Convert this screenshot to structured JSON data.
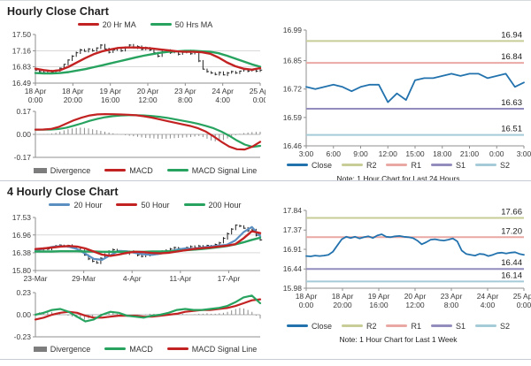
{
  "colors": {
    "grid": "#d9d9d9",
    "axis": "#8f8f8f",
    "candle": "#222222",
    "bar": "#8c8c8c",
    "red": "#c32222",
    "green": "#27a35f",
    "steel": "#5b8fc2",
    "close": "#2272ae",
    "r2": "#c8cd97",
    "r1": "#e9a8a4",
    "s1": "#938dbd",
    "s2": "#a5cbd9"
  },
  "chart_data": [
    {
      "title": "Hourly Close Chart",
      "type": "candlestick",
      "ylim": [
        16.49,
        17.5
      ],
      "yticks": [
        "17.50",
        "17.16",
        "16.83",
        "16.49"
      ],
      "grid": true,
      "xticks": [
        [
          "18 Apr",
          "0:00"
        ],
        [
          "18 Apr",
          "20:00"
        ],
        [
          "19 Apr",
          "16:00"
        ],
        [
          "20 Apr",
          "12:00"
        ],
        [
          "23 Apr",
          "8:00"
        ],
        [
          "24 Apr",
          "4:00"
        ],
        [
          "25 Apr",
          "0:00"
        ]
      ],
      "legend": [
        {
          "label": "20 Hr MA",
          "color": "#c32222",
          "type": "line"
        },
        {
          "label": "50 Hrs MA",
          "color": "#27a35f",
          "type": "line"
        }
      ],
      "candles": [
        16.76,
        16.73,
        16.71,
        16.74,
        16.72,
        16.75,
        16.8,
        16.88,
        16.97,
        17.05,
        17.12,
        17.18,
        17.15,
        17.2,
        17.16,
        17.22,
        17.28,
        17.2,
        17.13,
        17.18,
        17.22,
        17.16,
        17.24,
        17.28,
        17.22,
        17.25,
        17.19,
        17.23,
        17.18,
        17.12,
        17.05,
        17.14,
        17.17,
        17.12,
        17.15,
        17.09,
        17.13,
        17.16,
        17.1,
        17.14,
        16.95,
        16.78,
        16.73,
        16.7,
        16.67,
        16.71,
        16.66,
        16.7,
        16.73,
        16.7,
        16.74,
        16.77,
        16.74,
        16.76,
        16.74,
        16.76
      ],
      "series": [
        {
          "name": "50 Hrs MA",
          "color": "#27a35f",
          "width": 2.4,
          "values": [
            16.7,
            16.69,
            16.69,
            16.7,
            16.72,
            16.75,
            16.78,
            16.82,
            16.86,
            16.9,
            16.94,
            16.98,
            17.02,
            17.06,
            17.09,
            17.12,
            17.14,
            17.15,
            17.16,
            17.16,
            17.15,
            17.14,
            17.11,
            17.06,
            17.0,
            16.94,
            16.88,
            16.83
          ]
        },
        {
          "name": "20 Hr MA",
          "color": "#c32222",
          "width": 2.4,
          "values": [
            16.79,
            16.76,
            16.74,
            16.76,
            16.83,
            16.92,
            17.01,
            17.09,
            17.15,
            17.19,
            17.22,
            17.23,
            17.23,
            17.22,
            17.21,
            17.19,
            17.17,
            17.15,
            17.14,
            17.14,
            17.13,
            17.1,
            17.02,
            16.92,
            16.84,
            16.79,
            16.77,
            16.8
          ]
        }
      ]
    },
    {
      "type": "macd",
      "ylim": [
        -0.17,
        0.17
      ],
      "yticks": [
        "0.17",
        "0.00",
        "-0.17"
      ],
      "zeroline": true,
      "legend": [
        {
          "label": "Divergence",
          "color": "#7d7d7d",
          "type": "bar"
        },
        {
          "label": "MACD",
          "color": "#c32222",
          "type": "line"
        },
        {
          "label": "MACD Signal Line",
          "color": "#27a35f",
          "type": "line"
        }
      ],
      "bars": [
        0.001,
        0.001,
        0.002,
        0.003,
        0.006,
        0.012,
        0.02,
        0.03,
        0.038,
        0.044,
        0.048,
        0.05,
        0.048,
        0.044,
        0.038,
        0.032,
        0.026,
        0.02,
        0.014,
        0.008,
        0.003,
        -0.002,
        -0.006,
        -0.01,
        -0.014,
        -0.018,
        -0.022,
        -0.026,
        -0.028,
        -0.03,
        -0.032,
        -0.033,
        -0.032,
        -0.03,
        -0.028,
        -0.026,
        -0.024,
        -0.022,
        -0.02,
        -0.016,
        -0.012,
        -0.02,
        -0.032,
        -0.045,
        -0.052,
        -0.05,
        -0.042,
        -0.03,
        -0.018,
        -0.006,
        0.004,
        0.01,
        0.014,
        0.017,
        0.019,
        0.02
      ],
      "series": [
        {
          "name": "MACD Signal Line",
          "color": "#27a35f",
          "width": 2.2,
          "values": [
            0.035,
            0.035,
            0.036,
            0.04,
            0.05,
            0.065,
            0.082,
            0.1,
            0.115,
            0.127,
            0.135,
            0.14,
            0.142,
            0.142,
            0.14,
            0.136,
            0.13,
            0.122,
            0.112,
            0.101,
            0.09,
            0.078,
            0.063,
            0.045,
            0.02,
            -0.01,
            -0.045,
            -0.075,
            -0.092,
            -0.085
          ]
        },
        {
          "name": "MACD",
          "color": "#c32222",
          "width": 2.2,
          "values": [
            0.035,
            0.036,
            0.04,
            0.055,
            0.08,
            0.105,
            0.125,
            0.14,
            0.148,
            0.15,
            0.149,
            0.147,
            0.145,
            0.141,
            0.134,
            0.124,
            0.112,
            0.099,
            0.086,
            0.074,
            0.062,
            0.045,
            0.02,
            -0.015,
            -0.055,
            -0.09,
            -0.11,
            -0.112,
            -0.09,
            -0.055
          ]
        }
      ]
    },
    {
      "type": "line",
      "ylim": [
        16.46,
        16.99
      ],
      "yticks": [
        "16.99",
        "16.85",
        "16.72",
        "16.59",
        "16.46"
      ],
      "xticks": [
        "3:00",
        "6:00",
        "9:00",
        "12:00",
        "15:00",
        "18:00",
        "21:00",
        "0:00",
        "3:00"
      ],
      "note": "Note: 1 Hour Chart for Last 24 Hours",
      "legend": [
        {
          "label": "Close",
          "color": "#2272ae",
          "type": "line"
        },
        {
          "label": "R2",
          "color": "#c8cd97",
          "type": "line"
        },
        {
          "label": "R1",
          "color": "#e9a8a4",
          "type": "line"
        },
        {
          "label": "S1",
          "color": "#938dbd",
          "type": "line"
        },
        {
          "label": "S2",
          "color": "#a5cbd9",
          "type": "line"
        }
      ],
      "hlines": [
        {
          "label": "16.94",
          "value": 16.94,
          "color": "#c8cd97"
        },
        {
          "label": "16.84",
          "value": 16.84,
          "color": "#e9a8a4"
        },
        {
          "label": "16.63",
          "value": 16.63,
          "color": "#938dbd"
        },
        {
          "label": "16.51",
          "value": 16.51,
          "color": "#a5cbd9"
        }
      ],
      "series": [
        {
          "name": "Close",
          "color": "#2272ae",
          "width": 1.8,
          "values": [
            16.73,
            16.72,
            16.73,
            16.74,
            16.73,
            16.71,
            16.73,
            16.74,
            16.74,
            16.66,
            16.7,
            16.67,
            16.76,
            16.77,
            16.77,
            16.78,
            16.79,
            16.78,
            16.79,
            16.79,
            16.77,
            16.78,
            16.79,
            16.73,
            16.75
          ]
        }
      ]
    },
    {
      "title": "4 Hourly Close Chart",
      "type": "candlestick",
      "ylim": [
        15.8,
        17.53
      ],
      "yticks": [
        "17.53",
        "16.96",
        "16.38",
        "15.80"
      ],
      "grid": true,
      "xticks": [
        "23-Mar",
        "29-Mar",
        "4-Apr",
        "11-Apr",
        "17-Apr"
      ],
      "xfrac": [
        0,
        0.215,
        0.43,
        0.645,
        0.86
      ],
      "legend": [
        {
          "label": "20 Hour",
          "color": "#5b8fc2",
          "type": "line"
        },
        {
          "label": "50 Hour",
          "color": "#c32222",
          "type": "line"
        },
        {
          "label": "200 Hour",
          "color": "#27a35f",
          "type": "line"
        }
      ],
      "candles": [
        16.45,
        16.48,
        16.52,
        16.5,
        16.55,
        16.6,
        16.63,
        16.58,
        16.62,
        16.55,
        16.5,
        16.45,
        16.3,
        16.18,
        16.1,
        16.05,
        16.2,
        16.32,
        16.42,
        16.48,
        16.45,
        16.4,
        16.35,
        16.42,
        16.38,
        16.3,
        16.26,
        16.33,
        16.3,
        16.35,
        16.38,
        16.42,
        16.45,
        16.5,
        16.55,
        16.52,
        16.48,
        16.55,
        16.58,
        16.55,
        16.6,
        16.58,
        16.62,
        16.6,
        16.65,
        16.7,
        16.85,
        17.0,
        17.15,
        17.28,
        17.25,
        17.18,
        17.1,
        17.12,
        16.95,
        16.8
      ],
      "series": [
        {
          "name": "20 Hour",
          "color": "#5b8fc2",
          "width": 2.2,
          "values": [
            16.46,
            16.51,
            16.57,
            16.6,
            16.58,
            16.5,
            16.35,
            16.18,
            16.15,
            16.3,
            16.44,
            16.43,
            16.37,
            16.33,
            16.31,
            16.35,
            16.41,
            16.48,
            16.52,
            16.51,
            16.55,
            16.58,
            16.61,
            16.64,
            16.78,
            17.05,
            17.22,
            16.92
          ]
        },
        {
          "name": "200 Hour",
          "color": "#27a35f",
          "width": 2.4,
          "values": [
            16.42,
            16.42,
            16.42,
            16.43,
            16.43,
            16.43,
            16.42,
            16.42,
            16.41,
            16.41,
            16.41,
            16.41,
            16.41,
            16.41,
            16.42,
            16.42,
            16.43,
            16.44,
            16.46,
            16.48,
            16.5,
            16.53,
            16.56,
            16.6,
            16.65,
            16.72,
            16.8,
            16.87
          ]
        },
        {
          "name": "50 Hour",
          "color": "#c32222",
          "width": 2.4,
          "values": [
            16.5,
            16.52,
            16.55,
            16.58,
            16.6,
            16.58,
            16.52,
            16.42,
            16.32,
            16.28,
            16.32,
            16.38,
            16.41,
            16.4,
            16.37,
            16.36,
            16.38,
            16.42,
            16.46,
            16.5,
            16.53,
            16.55,
            16.58,
            16.61,
            16.66,
            16.85,
            17.08,
            17.02
          ]
        }
      ]
    },
    {
      "type": "macd",
      "ylim": [
        -0.23,
        0.23
      ],
      "yticks": [
        "0.23",
        "0.00",
        "-0.23"
      ],
      "zeroline": true,
      "legend": [
        {
          "label": "Divergence",
          "color": "#7d7d7d",
          "type": "bar"
        },
        {
          "label": "MACD",
          "color": "#27a35f",
          "type": "line"
        },
        {
          "label": "MACD Signal Line",
          "color": "#c32222",
          "type": "line"
        }
      ],
      "bars": [
        0.02,
        0.025,
        0.03,
        0.035,
        0.03,
        0.02,
        0.01,
        0.0,
        -0.01,
        -0.02,
        -0.03,
        -0.04,
        -0.05,
        -0.04,
        -0.02,
        0.0,
        0.01,
        0.02,
        0.025,
        0.02,
        0.01,
        0.0,
        -0.005,
        -0.01,
        -0.01,
        -0.005,
        0.0,
        0.005,
        0.01,
        0.01,
        0.005,
        0.0,
        0.0,
        0.005,
        0.01,
        0.015,
        0.01,
        0.005,
        0.0,
        0.005,
        0.01,
        0.01,
        0.015,
        0.01,
        0.01,
        0.015,
        0.02,
        0.03,
        0.045,
        0.06,
        0.07,
        0.065,
        0.05,
        0.03,
        -0.01,
        -0.04
      ],
      "series": [
        {
          "name": "MACD Signal Line",
          "color": "#c32222",
          "width": 2.2,
          "values": [
            -0.05,
            -0.03,
            0.0,
            0.02,
            0.03,
            0.02,
            -0.01,
            -0.03,
            -0.03,
            -0.02,
            -0.01,
            -0.01,
            -0.01,
            -0.02,
            -0.02,
            -0.01,
            0.0,
            0.01,
            0.03,
            0.04,
            0.05,
            0.05,
            0.06,
            0.07,
            0.09,
            0.12,
            0.15,
            0.16
          ]
        },
        {
          "name": "MACD",
          "color": "#27a35f",
          "width": 2.2,
          "values": [
            0.0,
            0.02,
            0.05,
            0.06,
            0.03,
            -0.02,
            -0.07,
            -0.05,
            0.0,
            0.03,
            0.02,
            -0.01,
            -0.02,
            -0.03,
            -0.01,
            0.0,
            0.02,
            0.05,
            0.06,
            0.05,
            0.05,
            0.06,
            0.07,
            0.09,
            0.13,
            0.18,
            0.2,
            0.12
          ]
        }
      ]
    },
    {
      "type": "line",
      "ylim": [
        15.98,
        17.84
      ],
      "yticks": [
        "17.84",
        "17.37",
        "16.91",
        "16.44",
        "15.98"
      ],
      "xticks": [
        [
          "18 Apr",
          "0:00"
        ],
        [
          "18 Apr",
          "20:00"
        ],
        [
          "19 Apr",
          "16:00"
        ],
        [
          "20 Apr",
          "12:00"
        ],
        [
          "23 Apr",
          "8:00"
        ],
        [
          "24 Apr",
          "4:00"
        ],
        [
          "25 Apr",
          "0:00"
        ]
      ],
      "note": "Note: 1 Hour Chart for Last 1 Week",
      "legend": [
        {
          "label": "Close",
          "color": "#2272ae",
          "type": "line"
        },
        {
          "label": "R2",
          "color": "#c8cd97",
          "type": "line"
        },
        {
          "label": "R1",
          "color": "#e9a8a4",
          "type": "line"
        },
        {
          "label": "S1",
          "color": "#938dbd",
          "type": "line"
        },
        {
          "label": "S2",
          "color": "#a5cbd9",
          "type": "line"
        }
      ],
      "hlines": [
        {
          "label": "17.66",
          "value": 17.66,
          "color": "#c8cd97"
        },
        {
          "label": "17.20",
          "value": 17.2,
          "color": "#e9a8a4"
        },
        {
          "label": "16.44",
          "value": 16.44,
          "color": "#938dbd"
        },
        {
          "label": "16.14",
          "value": 16.14,
          "color": "#a5cbd9"
        }
      ],
      "series": [
        {
          "name": "Close",
          "color": "#2272ae",
          "width": 1.8,
          "values": [
            16.75,
            16.74,
            16.76,
            16.75,
            16.76,
            16.78,
            16.85,
            17.0,
            17.15,
            17.21,
            17.18,
            17.21,
            17.17,
            17.2,
            17.22,
            17.18,
            17.24,
            17.27,
            17.21,
            17.2,
            17.22,
            17.23,
            17.21,
            17.2,
            17.18,
            17.12,
            17.03,
            17.08,
            17.14,
            17.15,
            17.13,
            17.12,
            17.14,
            17.17,
            17.1,
            16.88,
            16.8,
            16.78,
            16.76,
            16.8,
            16.79,
            16.75,
            16.78,
            16.82,
            16.83,
            16.81,
            16.83,
            16.84,
            16.8,
            16.78
          ]
        }
      ]
    }
  ]
}
